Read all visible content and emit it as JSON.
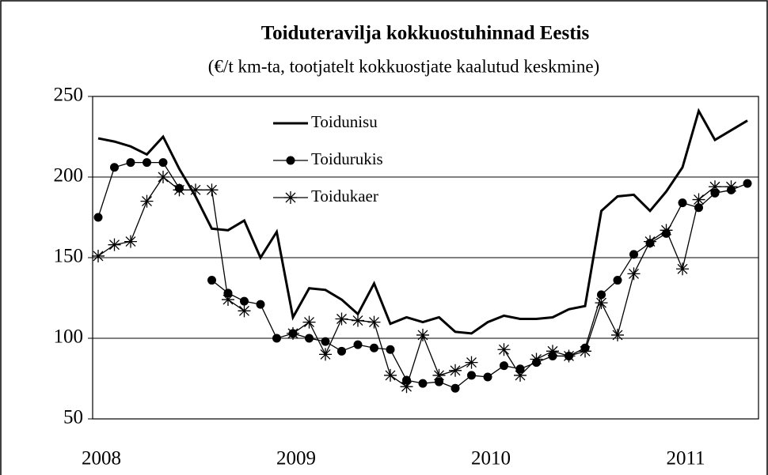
{
  "chart_data": {
    "type": "line",
    "title": "Toiduteravilja kokkuostuhinnad Eestis",
    "subtitle": "(€/t km-ta, tootjatelt kokkuostjate kaalutud keskmine)",
    "categories": [
      "2008",
      null,
      null,
      null,
      null,
      null,
      null,
      null,
      null,
      null,
      null,
      null,
      "2009",
      null,
      null,
      null,
      null,
      null,
      null,
      null,
      null,
      null,
      null,
      null,
      "2010",
      null,
      null,
      null,
      null,
      null,
      null,
      null,
      null,
      null,
      null,
      null,
      "2011",
      null,
      null,
      null,
      null
    ],
    "series": [
      {
        "name": "Toidunisu",
        "color": "#000000",
        "marker": "none",
        "values": [
          224,
          222,
          219,
          214,
          225,
          205,
          188,
          168,
          167,
          173,
          150,
          166,
          113,
          131,
          130,
          124,
          115,
          134,
          109,
          113,
          110,
          113,
          104,
          103,
          110,
          114,
          112,
          112,
          113,
          118,
          120,
          179,
          188,
          189,
          179,
          191,
          206,
          241,
          223,
          229,
          235
        ]
      },
      {
        "name": "Toidurukis",
        "color": "#000000",
        "marker": "circle",
        "values": [
          175,
          206,
          209,
          209,
          209,
          193,
          null,
          136,
          128,
          123,
          121,
          100,
          103,
          100,
          98,
          92,
          96,
          94,
          93,
          74,
          72,
          73,
          69,
          77,
          76,
          83,
          81,
          85,
          89,
          89,
          94,
          127,
          136,
          152,
          159,
          165,
          184,
          181,
          190,
          192,
          196
        ]
      },
      {
        "name": "Toidukaer",
        "color": "#000000",
        "marker": "star",
        "values": [
          151,
          158,
          160,
          185,
          200,
          192,
          192,
          192,
          124,
          117,
          null,
          null,
          103,
          110,
          90,
          112,
          111,
          110,
          77,
          70,
          102,
          77,
          80,
          85,
          null,
          93,
          77,
          87,
          92,
          89,
          92,
          122,
          102,
          140,
          160,
          167,
          143,
          186,
          194,
          194,
          null
        ]
      }
    ],
    "ylim": [
      50,
      250
    ],
    "yticks": [
      50,
      100,
      150,
      200,
      250
    ],
    "grid": true
  }
}
